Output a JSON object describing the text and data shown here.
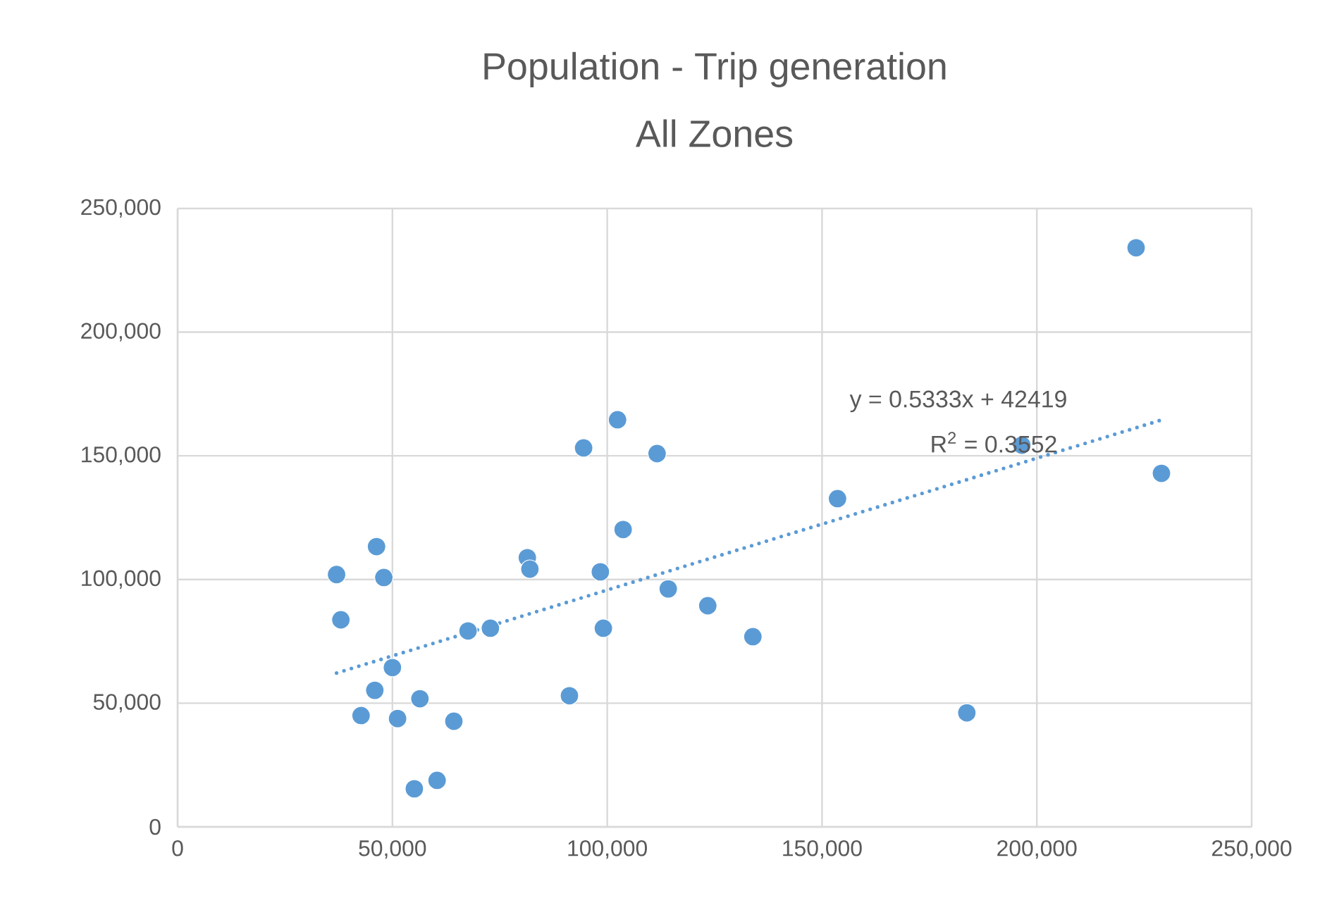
{
  "chart_data": {
    "type": "scatter",
    "title": "Population - Trip generation",
    "subtitle": "All Zones",
    "xlim": [
      0,
      250000
    ],
    "ylim": [
      0,
      250000
    ],
    "xticks": [
      0,
      {
        "value": 50000,
        "label": "50,000"
      },
      {
        "value": 100000,
        "label": "100,000"
      },
      {
        "value": 150000,
        "label": "150,000"
      },
      {
        "value": 200000,
        "label": "200,000"
      },
      {
        "value": 250000,
        "label": "250,000"
      }
    ],
    "yticks": [
      0,
      {
        "value": 50000,
        "label": "50,000"
      },
      {
        "value": 100000,
        "label": "100,000"
      },
      {
        "value": 150000,
        "label": "150,000"
      },
      {
        "value": 200000,
        "label": "200,000"
      },
      {
        "value": 250000,
        "label": "250,000"
      }
    ],
    "grid": true,
    "marker": "circle",
    "series": [
      {
        "type": "scatter",
        "color": "#5b9bd5",
        "x": [
          37000,
          38000,
          46300,
          48000,
          50000,
          45900,
          42700,
          51200,
          56400,
          55100,
          60400,
          64300,
          67600,
          72800,
          81400,
          82000,
          91200,
          94500,
          98400,
          99100,
          102400,
          103700,
          111600,
          114200,
          123400,
          133900,
          153600,
          183700,
          196500,
          223100,
          229000
        ],
        "values": [
          102000,
          83700,
          113300,
          100800,
          64400,
          55200,
          45000,
          43800,
          51800,
          15400,
          18800,
          42700,
          79200,
          80300,
          108800,
          104200,
          53000,
          153200,
          103100,
          80300,
          164600,
          120200,
          150900,
          96200,
          89400,
          76900,
          132700,
          46100,
          154300,
          234100,
          142900
        ]
      },
      {
        "type": "line",
        "color": "#5b9bd5",
        "line_style": "dotted",
        "marker": "none",
        "x": [
          37000,
          229000
        ],
        "values": [
          62200,
          164500
        ]
      }
    ],
    "annotations": [
      "y = 0.5333x + 42419",
      "R$^{2}$ = 0.3552"
    ]
  }
}
